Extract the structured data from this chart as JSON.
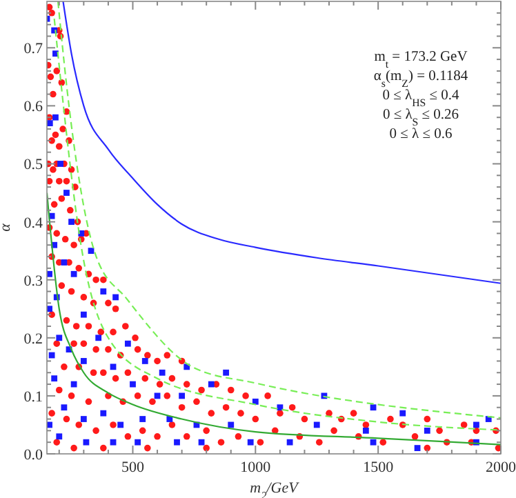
{
  "chart_data": {
    "type": "scatter",
    "xlabel": "m$_{2}$/GeV",
    "ylabel": "α",
    "xlim": [
      150,
      2000
    ],
    "ylim": [
      0,
      0.78
    ],
    "xticks": [
      {
        "value": 200,
        "label": null
      },
      {
        "value": 300,
        "label": null
      },
      {
        "value": 400,
        "label": null
      },
      500,
      {
        "value": 600,
        "label": null
      },
      {
        "value": 700,
        "label": null
      },
      {
        "value": 800,
        "label": null
      },
      {
        "value": 900,
        "label": null
      },
      1000,
      {
        "value": 1100,
        "label": null
      },
      {
        "value": 1200,
        "label": null
      },
      {
        "value": 1300,
        "label": null
      },
      {
        "value": 1400,
        "label": null
      },
      1500,
      {
        "value": 1600,
        "label": null
      },
      {
        "value": 1700,
        "label": null
      },
      {
        "value": 1800,
        "label": null
      },
      {
        "value": 1900,
        "label": null
      },
      2000
    ],
    "yticks": [
      {
        "value": 0,
        "label": "0.0"
      },
      {
        "value": 0.02,
        "label": null
      },
      {
        "value": 0.04,
        "label": null
      },
      {
        "value": 0.06,
        "label": null
      },
      {
        "value": 0.08,
        "label": null
      },
      {
        "value": 0.1,
        "label": "0.1"
      },
      {
        "value": 0.12,
        "label": null
      },
      {
        "value": 0.14,
        "label": null
      },
      {
        "value": 0.16,
        "label": null
      },
      {
        "value": 0.18,
        "label": null
      },
      {
        "value": 0.2,
        "label": "0.2"
      },
      {
        "value": 0.22,
        "label": null
      },
      {
        "value": 0.24,
        "label": null
      },
      {
        "value": 0.26,
        "label": null
      },
      {
        "value": 0.28,
        "label": null
      },
      {
        "value": 0.3,
        "label": "0.3"
      },
      {
        "value": 0.32,
        "label": null
      },
      {
        "value": 0.34,
        "label": null
      },
      {
        "value": 0.36,
        "label": null
      },
      {
        "value": 0.38,
        "label": null
      },
      {
        "value": 0.4,
        "label": "0.4"
      },
      {
        "value": 0.42,
        "label": null
      },
      {
        "value": 0.44,
        "label": null
      },
      {
        "value": 0.46,
        "label": null
      },
      {
        "value": 0.48,
        "label": null
      },
      {
        "value": 0.5,
        "label": "0.5"
      },
      {
        "value": 0.52,
        "label": null
      },
      {
        "value": 0.54,
        "label": null
      },
      {
        "value": 0.56,
        "label": null
      },
      {
        "value": 0.58,
        "label": null
      },
      {
        "value": 0.6,
        "label": "0.6"
      },
      {
        "value": 0.62,
        "label": null
      },
      {
        "value": 0.64,
        "label": null
      },
      {
        "value": 0.66,
        "label": null
      },
      {
        "value": 0.68,
        "label": null
      },
      {
        "value": 0.7,
        "label": "0.7"
      },
      {
        "value": 0.72,
        "label": null
      },
      {
        "value": 0.74,
        "label": null
      },
      {
        "value": 0.76,
        "label": null
      }
    ],
    "grid": false,
    "annotations": [
      "m$_{t}$ = 173.2 GeV",
      "α$_{s}$(m$_{Z}$) = 0.1184",
      "0 ≤ λ$_{HS}$ ≤ 0.4",
      "0 ≤ λ$_{S}$ ≤ 0.26",
      "0 ≤ λ ≤ 0.6"
    ],
    "series": [
      {
        "color": "#ff1a1a",
        "marker": "circle",
        "x": [
          160,
          170,
          200,
          205,
          155,
          165,
          190,
          210,
          175,
          230,
          160,
          185,
          170,
          200,
          215,
          240,
          155,
          175,
          190,
          220,
          250,
          160,
          200,
          230,
          265,
          180,
          210,
          245,
          275,
          160,
          190,
          225,
          260,
          290,
          310,
          170,
          200,
          240,
          280,
          320,
          350,
          380,
          210,
          250,
          300,
          340,
          400,
          430,
          170,
          230,
          270,
          320,
          370,
          420,
          470,
          510,
          190,
          260,
          300,
          350,
          400,
          450,
          520,
          560,
          600,
          640,
          700,
          220,
          280,
          340,
          380,
          430,
          480,
          550,
          610,
          660,
          720,
          780,
          840,
          900,
          960,
          1050,
          200,
          250,
          320,
          400,
          460,
          520,
          580,
          640,
          700,
          760,
          820,
          880,
          940,
          1000,
          1100,
          1150,
          1200,
          1300,
          1350,
          1400,
          1450,
          1550,
          1600,
          1700,
          1750,
          1850,
          1900,
          1980,
          170,
          230,
          280,
          350,
          420,
          480,
          540,
          600,
          660,
          720,
          800,
          860,
          930,
          1020,
          1080,
          1180,
          1260,
          1320,
          1420,
          1520,
          1650,
          1780,
          1880,
          1990,
          190,
          260,
          380,
          560,
          800,
          1700
        ],
        "values": [
          0.77,
          0.76,
          0.73,
          0.72,
          0.67,
          0.65,
          0.66,
          0.64,
          0.62,
          0.59,
          0.58,
          0.55,
          0.54,
          0.53,
          0.56,
          0.54,
          0.5,
          0.49,
          0.5,
          0.5,
          0.49,
          0.47,
          0.47,
          0.47,
          0.46,
          0.43,
          0.44,
          0.42,
          0.4,
          0.39,
          0.38,
          0.37,
          0.36,
          0.37,
          0.38,
          0.34,
          0.33,
          0.33,
          0.32,
          0.31,
          0.3,
          0.3,
          0.29,
          0.28,
          0.27,
          0.26,
          0.26,
          0.25,
          0.24,
          0.23,
          0.22,
          0.22,
          0.21,
          0.21,
          0.22,
          0.2,
          0.19,
          0.19,
          0.19,
          0.18,
          0.18,
          0.17,
          0.18,
          0.17,
          0.16,
          0.17,
          0.16,
          0.15,
          0.15,
          0.14,
          0.14,
          0.13,
          0.14,
          0.13,
          0.12,
          0.13,
          0.12,
          0.11,
          0.12,
          0.11,
          0.1,
          0.1,
          0.11,
          0.1,
          0.09,
          0.1,
          0.09,
          0.1,
          0.09,
          0.1,
          0.08,
          0.09,
          0.07,
          0.08,
          0.07,
          0.06,
          0.07,
          0.08,
          0.06,
          0.07,
          0.06,
          0.07,
          0.05,
          0.06,
          0.05,
          0.06,
          0.04,
          0.05,
          0.04,
          0.04,
          0.07,
          0.06,
          0.05,
          0.04,
          0.05,
          0.03,
          0.04,
          0.03,
          0.05,
          0.03,
          0.04,
          0.02,
          0.03,
          0.02,
          0.04,
          0.03,
          0.02,
          0.04,
          0.03,
          0.02,
          0.03,
          0.02,
          0.02,
          0.01,
          0.02,
          0.01,
          0.01,
          0.01,
          0.01,
          0.01
        ]
      },
      {
        "color": "#1a1aff",
        "marker": "square",
        "x": [
          150,
          180,
          185,
          162,
          185,
          205,
          230,
          170,
          250,
          290,
          180,
          220,
          330,
          160,
          260,
          380,
          430,
          190,
          300,
          160,
          200,
          240,
          360,
          480,
          550,
          170,
          300,
          420,
          620,
          720,
          880,
          820,
          500,
          260,
          180,
          600,
          700,
          1000,
          1100,
          1280,
          1480,
          1600,
          1900,
          1950,
          160,
          220,
          300,
          380,
          450,
          540,
          650,
          760,
          900,
          1250,
          1450,
          1700,
          200,
          310,
          420,
          520,
          680,
          780,
          980,
          1140,
          1480,
          1660,
          1900
        ],
        "values": [
          0.75,
          0.73,
          0.69,
          0.57,
          0.58,
          0.5,
          0.45,
          0.41,
          0.4,
          0.38,
          0.36,
          0.33,
          0.35,
          0.31,
          0.31,
          0.28,
          0.27,
          0.27,
          0.24,
          0.25,
          0.2,
          0.18,
          0.2,
          0.19,
          0.16,
          0.17,
          0.16,
          0.15,
          0.14,
          0.15,
          0.14,
          0.12,
          0.12,
          0.12,
          0.13,
          0.1,
          0.1,
          0.09,
          0.08,
          0.1,
          0.08,
          0.07,
          0.05,
          0.06,
          0.05,
          0.08,
          0.06,
          0.07,
          0.05,
          0.06,
          0.06,
          0.05,
          0.05,
          0.05,
          0.04,
          0.04,
          0.03,
          0.02,
          0.02,
          0.02,
          0.02,
          0.02,
          0.02,
          0.02,
          0.02,
          0.01,
          0.02
        ]
      },
      {
        "type": "line",
        "color": "#2a2aff",
        "line_style": "solid",
        "x": [
          216,
          250,
          300,
          400,
          500,
          600,
          700,
          850,
          1000,
          1250,
          1500,
          2000
        ],
        "values": [
          0.78,
          0.69,
          0.6,
          0.525,
          0.475,
          0.43,
          0.396,
          0.37,
          0.356,
          0.338,
          0.324,
          0.294
        ]
      },
      {
        "type": "line",
        "color": "#33aa33",
        "line_style": "solid",
        "x": [
          150,
          200,
          250,
          300,
          400,
          500,
          700,
          1000,
          1500,
          2000
        ],
        "values": [
          0.45,
          0.25,
          0.18,
          0.14,
          0.105,
          0.085,
          0.06,
          0.038,
          0.027,
          0.016
        ]
      },
      {
        "type": "line",
        "color": "#77ee55",
        "line_style": "dashed",
        "x": [
          195,
          233,
          351,
          474,
          747,
          1000,
          2000
        ],
        "values": [
          0.78,
          0.625,
          0.34,
          0.268,
          0.149,
          0.122,
          0.062
        ]
      },
      {
        "type": "line",
        "color": "#77ee55",
        "line_style": "dashed",
        "x": [
          180,
          297,
          400,
          600,
          1000,
          1500,
          2000
        ],
        "values": [
          0.75,
          0.34,
          0.2,
          0.13,
          0.085,
          0.055,
          0.041
        ]
      }
    ]
  }
}
